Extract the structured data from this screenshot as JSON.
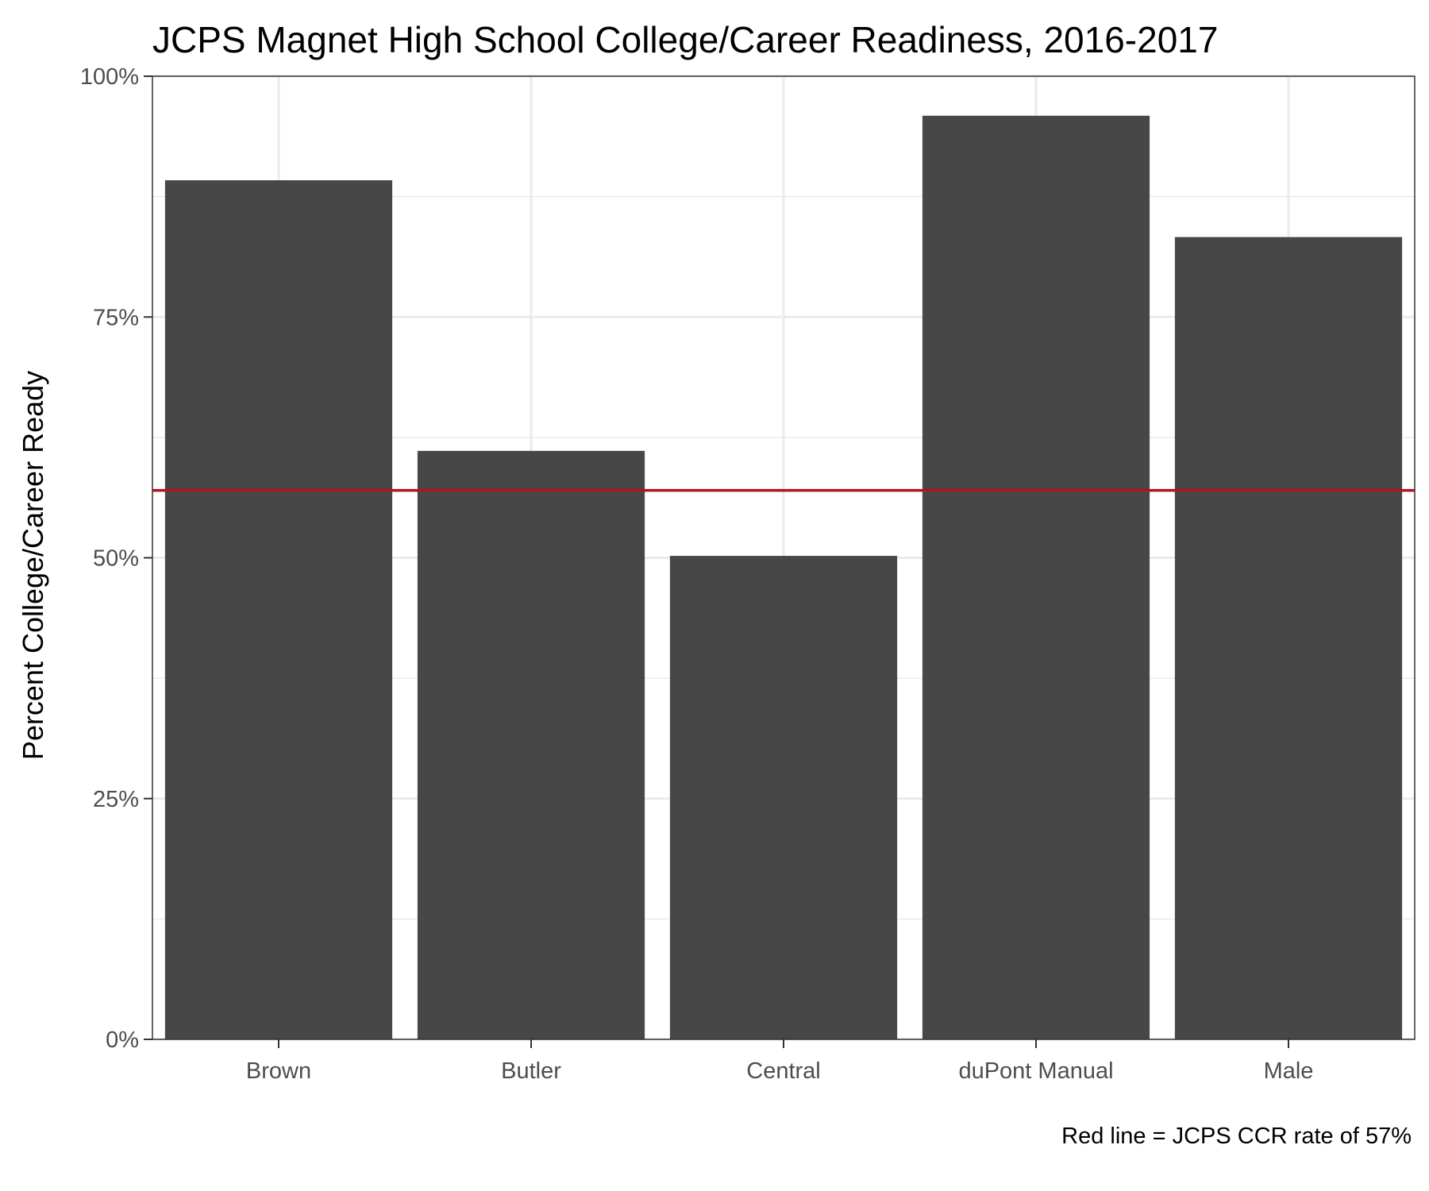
{
  "chart_data": {
    "type": "bar",
    "title": "JCPS Magnet High School College/Career Readiness, 2016-2017",
    "xlabel": "",
    "ylabel": "Percent College/Career Ready",
    "categories": [
      "Brown",
      "Butler",
      "Central",
      "duPont Manual",
      "Male"
    ],
    "values": [
      89.2,
      61.1,
      50.2,
      95.9,
      83.3
    ],
    "ylim": [
      0,
      100
    ],
    "yticks": [
      0,
      25,
      50,
      75,
      100
    ],
    "ytick_labels": [
      "0%",
      "25%",
      "50%",
      "75%",
      "100%"
    ],
    "reference_line": {
      "value": 57,
      "color": "#b5121b"
    },
    "caption": "Red line = JCPS CCR rate of 57%",
    "bar_color": "#474747",
    "grid": true,
    "legend": "none"
  }
}
